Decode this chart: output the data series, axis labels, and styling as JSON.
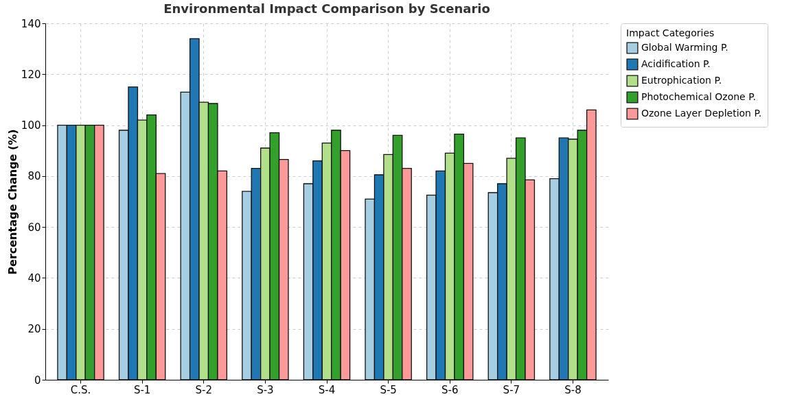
{
  "chart_data": {
    "type": "bar",
    "title": "Environmental Impact Comparison by Scenario",
    "ylabel": "Percentage Change (%)",
    "legend_title": "Impact Categories",
    "categories": [
      "C.S.",
      "S-1",
      "S-2",
      "S-3",
      "S-4",
      "S-5",
      "S-6",
      "S-7",
      "S-8"
    ],
    "series": [
      {
        "name": "Global Warming P.",
        "color": "#a6cee3",
        "values": [
          100,
          98,
          113,
          74,
          77,
          71,
          72.5,
          73.5,
          79
        ]
      },
      {
        "name": "Acidification P.",
        "color": "#1f78b4",
        "values": [
          100,
          115,
          134,
          83,
          86,
          80.5,
          82,
          77,
          95
        ]
      },
      {
        "name": "Eutrophication P.",
        "color": "#b2df8a",
        "values": [
          100,
          102,
          109,
          91,
          93,
          88.5,
          89,
          87,
          94.5
        ]
      },
      {
        "name": "Photochemical Ozone P.",
        "color": "#33a02c",
        "values": [
          100,
          104,
          108.5,
          97,
          98,
          96,
          96.5,
          95,
          98
        ]
      },
      {
        "name": "Ozone Layer Depletion P.",
        "color": "#fb9a99",
        "values": [
          100,
          81,
          82,
          86.5,
          90,
          83,
          85,
          78.5,
          106
        ]
      }
    ],
    "ylim": [
      0,
      140
    ],
    "yticks": [
      0,
      20,
      40,
      60,
      80,
      100,
      120,
      140
    ],
    "grid": true,
    "legend": "right"
  }
}
